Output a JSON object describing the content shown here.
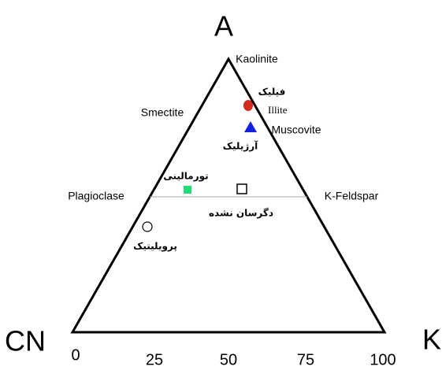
{
  "vertices": {
    "top": "A",
    "left": "CN",
    "right": "K"
  },
  "edge_labels": {
    "top": "Kaolinite",
    "upper_left": "Smectite",
    "left": "Plagioclase",
    "right": "K-Feldspar",
    "illite": "Illite",
    "muscovite": "Muscovite"
  },
  "ticks": [
    "0",
    "25",
    "50",
    "75",
    "100"
  ],
  "points": [
    {
      "label": "فیلیک"
    },
    {
      "label": "آرژیلیک"
    },
    {
      "label": "تورمالینی"
    },
    {
      "label": "دگرسان نشده"
    },
    {
      "label": "پرویلیتیک"
    }
  ]
}
